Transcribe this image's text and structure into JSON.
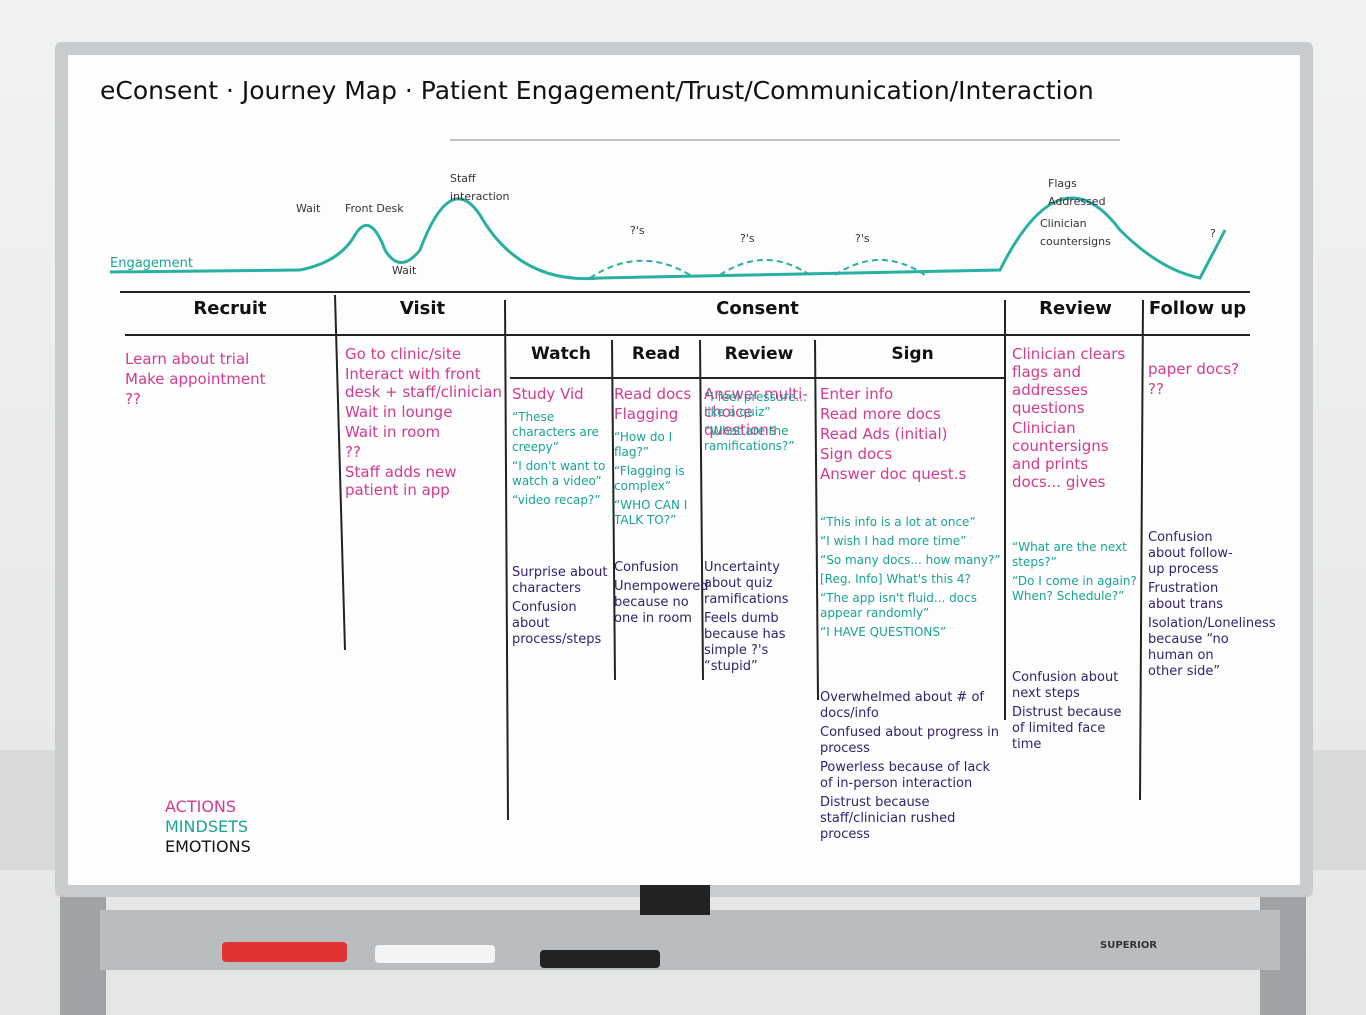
{
  "title": "eConsent · Journey Map · Patient Engagement/Trust/Communication/Interaction",
  "curve_labels": [
    "Engagement",
    "Wait",
    "Front Desk",
    "Wait",
    "Staff interaction",
    "?'s",
    "?'s",
    "?'s",
    "Flags Addressed",
    "Clinician countersigns",
    "?"
  ],
  "phases": [
    {
      "name": "Recruit",
      "columns": [
        {
          "actions": [
            "Learn about trial",
            "Make appointment",
            "??"
          ],
          "mindsets": [],
          "emotions": []
        }
      ]
    },
    {
      "name": "Visit",
      "columns": [
        {
          "actions": [
            "Go to clinic/site",
            "Interact with front desk + staff/clinician",
            "Wait in lounge",
            "Wait in room",
            "??",
            "Staff adds new patient in app"
          ],
          "mindsets": [],
          "emotions": []
        }
      ]
    },
    {
      "name": "Consent",
      "columns": [
        {
          "title": "Watch",
          "actions": [
            "Study Vid"
          ],
          "mindsets": [
            "“These characters are creepy”",
            "“I don't want to watch a video”",
            "“video recap?”"
          ],
          "emotions": [
            "Surprise about characters",
            "Confusion about process/steps"
          ]
        },
        {
          "title": "Read",
          "actions": [
            "Read docs",
            "Flagging"
          ],
          "mindsets": [
            "“How do I flag?”",
            "“Flagging is complex”",
            "“WHO CAN I TALK TO?”"
          ],
          "emotions": [
            "Confusion",
            "Unempowered because no one in room"
          ]
        },
        {
          "title": "Review",
          "actions": [
            "Answer multi-choice questions"
          ],
          "mindsets": [
            "“I feel pressure... like a quiz”",
            "“What are the ramifications?”"
          ],
          "emotions": [
            "Uncertainty about quiz ramifications",
            "Feels dumb because has simple ?'s “stupid”"
          ]
        },
        {
          "title": "Sign",
          "actions": [
            "Enter info",
            "Read more docs",
            "Read Ads (initial)",
            "Sign docs",
            "Answer doc quest.s"
          ],
          "mindsets": [
            "“This info is a lot at once”",
            "“I wish I had more time”",
            "“So many docs... how many?”",
            "[Reg. Info] What's this 4?",
            "“The app isn't fluid... docs appear randomly”",
            "“I HAVE QUESTIONS”"
          ],
          "emotions": [
            "Overwhelmed about # of docs/info",
            "Confused about progress in process",
            "Powerless because of lack of in-person interaction",
            "Distrust because staff/clinician rushed process"
          ]
        }
      ]
    },
    {
      "name": "Review",
      "columns": [
        {
          "actions": [
            "Clinician clears flags and addresses questions",
            "Clinician countersigns and prints docs... gives"
          ],
          "mindsets": [
            "“What are the next steps?”",
            "“Do I come in again? When? Schedule?”"
          ],
          "emotions": [
            "Confusion about next steps",
            "Distrust because of limited face time"
          ]
        }
      ]
    },
    {
      "name": "Follow up",
      "columns": [
        {
          "actions": [
            "paper docs?",
            "??"
          ],
          "mindsets": [],
          "emotions": [
            "Confusion about follow-up process",
            "Frustration about trans",
            "Isolation/Loneliness because “no human on other side”"
          ]
        }
      ]
    }
  ],
  "legend": [
    "ACTIONS",
    "MINDSETS",
    "EMOTIONS"
  ],
  "brand": "SUPERIOR"
}
